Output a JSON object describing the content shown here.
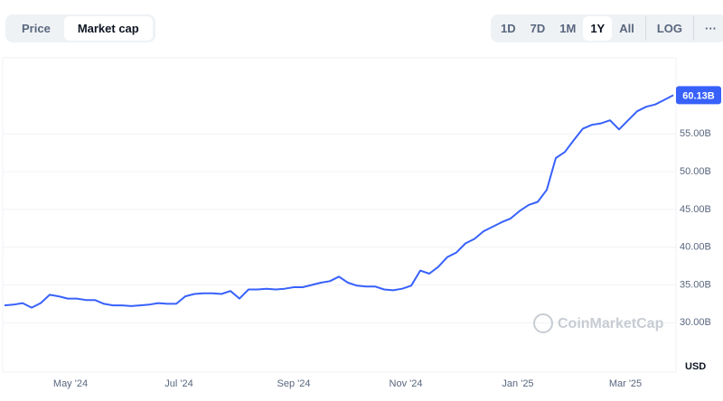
{
  "toolbar": {
    "tabs": [
      "Price",
      "Market cap"
    ],
    "selected_tab": 1,
    "ranges": [
      "1D",
      "7D",
      "1M",
      "1Y",
      "All"
    ],
    "selected_range": 3,
    "log_label": "LOG",
    "more": "···"
  },
  "chart_data": {
    "type": "line",
    "color": "#3861fb",
    "grid": true,
    "watermark": "CoinMarketCap",
    "unit_label": "USD",
    "xlim": [
      0,
      74
    ],
    "xticks": [
      {
        "value": 7.3,
        "label": "May '24"
      },
      {
        "value": 19.3,
        "label": "Jul '24"
      },
      {
        "value": 32,
        "label": "Sep '24"
      },
      {
        "value": 44.4,
        "label": "Nov '24"
      },
      {
        "value": 56.8,
        "label": "Jan '25"
      },
      {
        "value": 68.7,
        "label": "Mar '25"
      }
    ],
    "ylim": [
      23.7,
      64.6
    ],
    "yticks": [
      {
        "value": 30,
        "label": "30.00B"
      },
      {
        "value": 35,
        "label": "35.00B"
      },
      {
        "value": 40,
        "label": "40.00B"
      },
      {
        "value": 45,
        "label": "45.00B"
      },
      {
        "value": 50,
        "label": "50.00B"
      },
      {
        "value": 55,
        "label": "55.00B"
      }
    ],
    "values": [
      32.3,
      32.4,
      32.6,
      32.0,
      32.6,
      33.7,
      33.5,
      33.2,
      33.2,
      33.0,
      33.0,
      32.5,
      32.3,
      32.3,
      32.2,
      32.3,
      32.4,
      32.6,
      32.5,
      32.5,
      33.5,
      33.8,
      33.9,
      33.9,
      33.8,
      34.2,
      33.2,
      34.4,
      34.4,
      34.5,
      34.4,
      34.5,
      34.7,
      34.7,
      35.0,
      35.3,
      35.5,
      36.1,
      35.3,
      34.9,
      34.8,
      34.8,
      34.4,
      34.3,
      34.5,
      34.9,
      36.9,
      36.5,
      37.4,
      38.7,
      39.3,
      40.5,
      41.1,
      42.1,
      42.7,
      43.3,
      43.8,
      44.8,
      45.6,
      46.0,
      47.6,
      51.8,
      52.6,
      54.2,
      55.7,
      56.2,
      56.4,
      56.8,
      55.6,
      56.8,
      58.0,
      58.6,
      58.9,
      59.5,
      60.13
    ],
    "value_labels": [
      null,
      null,
      null,
      null,
      null,
      null,
      null,
      null,
      null,
      null,
      null,
      null,
      null,
      null,
      null,
      null,
      null,
      null,
      null,
      null,
      null,
      null,
      null,
      null,
      null,
      null,
      null,
      null,
      null,
      null,
      null,
      null,
      null,
      null,
      null,
      null,
      null,
      null,
      null,
      null,
      null,
      null,
      null,
      null,
      null,
      null,
      null,
      null,
      null,
      null,
      null,
      null,
      null,
      null,
      null,
      null,
      null,
      null,
      null,
      null,
      null,
      null,
      null,
      null,
      null,
      null,
      null,
      null,
      null,
      null,
      null,
      null,
      null,
      null,
      "60.13B"
    ]
  }
}
